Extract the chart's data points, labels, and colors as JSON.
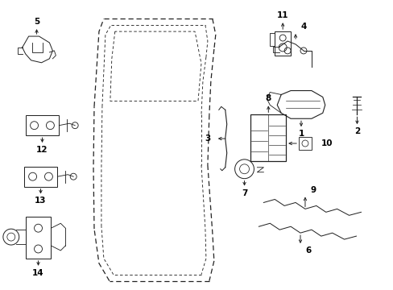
{
  "bg_color": "#ffffff",
  "line_color": "#222222",
  "label_color": "#000000",
  "figsize": [
    4.89,
    3.6
  ],
  "dpi": 100,
  "door": {
    "outer": {
      "x": [
        1.3,
        1.22,
        1.15,
        1.15,
        1.18,
        1.3,
        1.48,
        2.6,
        2.68,
        2.65,
        2.6,
        2.6,
        2.65,
        2.68,
        2.62,
        1.48,
        1.3
      ],
      "y": [
        3.4,
        3.25,
        2.3,
        1.5,
        0.72,
        0.3,
        0.1,
        0.1,
        0.35,
        0.9,
        1.6,
        2.2,
        2.8,
        3.2,
        3.4,
        3.4,
        3.4
      ]
    },
    "inner": {
      "x": [
        1.4,
        1.32,
        1.28,
        1.28,
        1.32,
        1.48,
        2.5,
        2.55,
        2.55,
        2.5,
        1.48,
        1.4
      ],
      "y": [
        3.32,
        3.2,
        2.3,
        1.5,
        0.8,
        0.48,
        0.48,
        0.8,
        2.8,
        3.32,
        3.32,
        3.32
      ]
    }
  }
}
